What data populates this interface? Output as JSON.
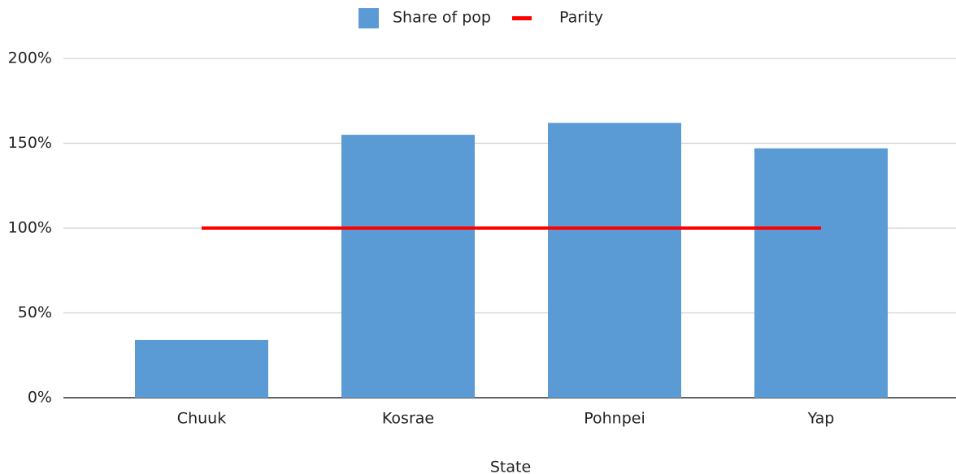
{
  "chart_data": {
    "type": "bar",
    "x_label": "State",
    "categories": [
      "Chuuk",
      "Kosrae",
      "Pohnpei",
      "Yap"
    ],
    "series": [
      {
        "name": "Share of pop",
        "color": "#5b9bd5",
        "values": [
          34,
          155,
          162,
          147
        ]
      },
      {
        "name": "Parity",
        "color": "#ff0000",
        "type": "line",
        "values": [
          100,
          100,
          100,
          100
        ]
      }
    ],
    "ylim": [
      0,
      200
    ],
    "yticks": [
      {
        "value": 0,
        "label": "0%"
      },
      {
        "value": 50,
        "label": "50%"
      },
      {
        "value": 100,
        "label": "100%"
      },
      {
        "value": 150,
        "label": "150%"
      },
      {
        "value": 200,
        "label": "200%"
      }
    ],
    "grid": true,
    "legend": "top"
  }
}
